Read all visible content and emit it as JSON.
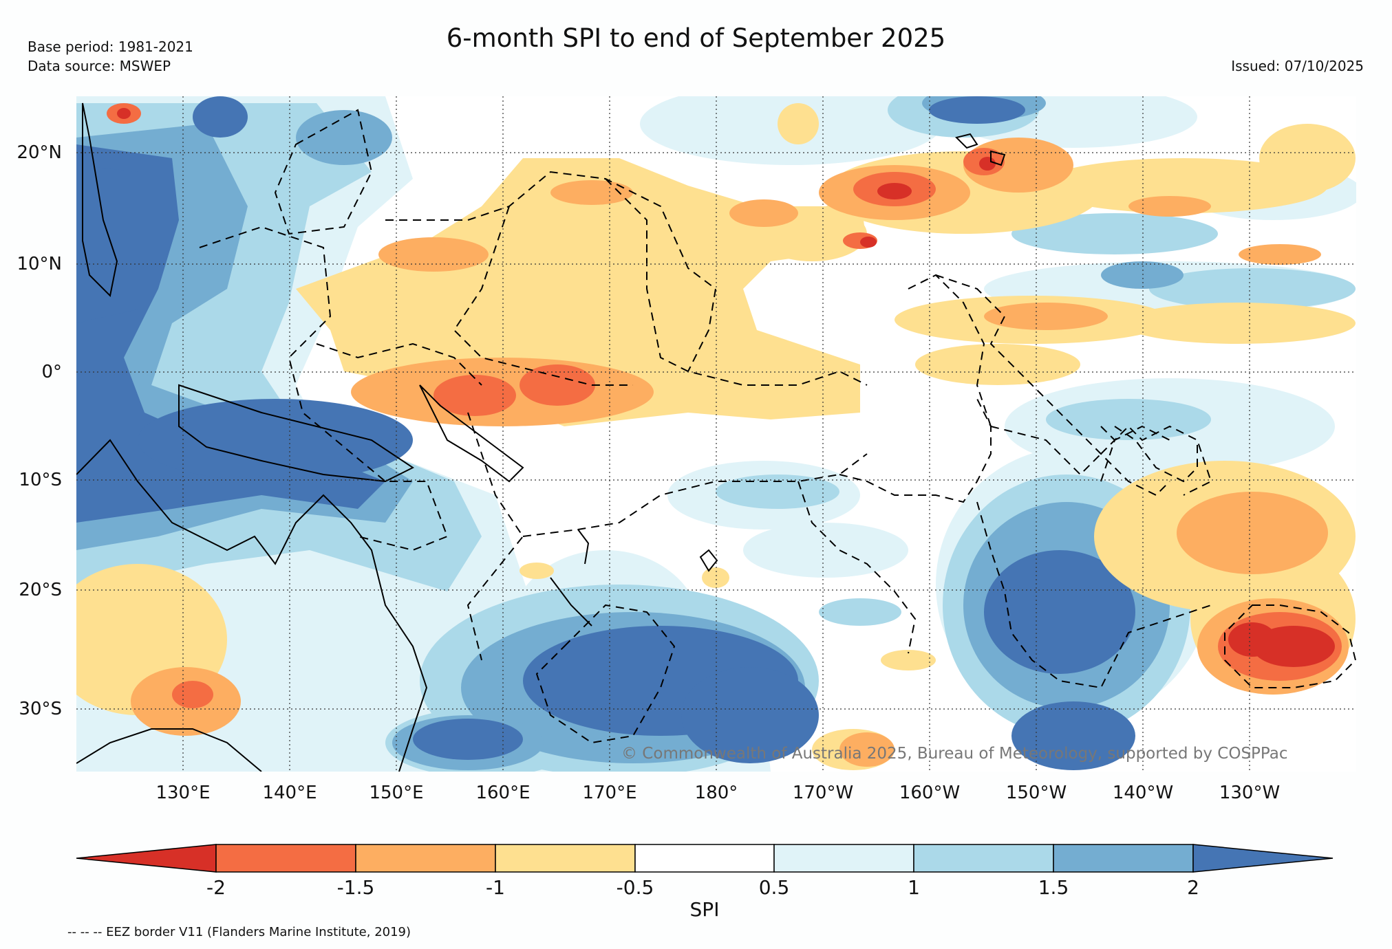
{
  "header": {
    "title": "6-month SPI to end of September 2025",
    "base_period": "Base period: 1981-2021",
    "data_source": "Data source: MSWEP",
    "issued": "Issued: 07/10/2025"
  },
  "map": {
    "lat_labels": [
      "20°N",
      "10°N",
      "0°",
      "10°S",
      "20°S",
      "30°S"
    ],
    "lon_labels": [
      "130°E",
      "140°E",
      "150°E",
      "160°E",
      "170°E",
      "180°",
      "170°W",
      "160°W",
      "150°W",
      "140°W",
      "130°W"
    ],
    "copyright": "© Commonwealth of Australia 2025, Bureau of Meteorology, supported by COSPPac"
  },
  "colorbar": {
    "label": "SPI",
    "ticks": [
      "-2",
      "-1.5",
      "-1",
      "-0.5",
      "0.5",
      "1",
      "1.5",
      "2"
    ],
    "colors": {
      "lt_m2": "#d73027",
      "m2_m15": "#f46d43",
      "m15_m1": "#fdae61",
      "m1_m05": "#fee090",
      "m05_05": "#ffffff",
      "p05_1": "#e0f3f8",
      "p1_15": "#abd9e9",
      "p15_2": "#74add1",
      "gt_2": "#4575b4"
    }
  },
  "footer": {
    "eez_note": "-- -- -- EEZ border V11 (Flanders Marine Institute, 2019)"
  }
}
